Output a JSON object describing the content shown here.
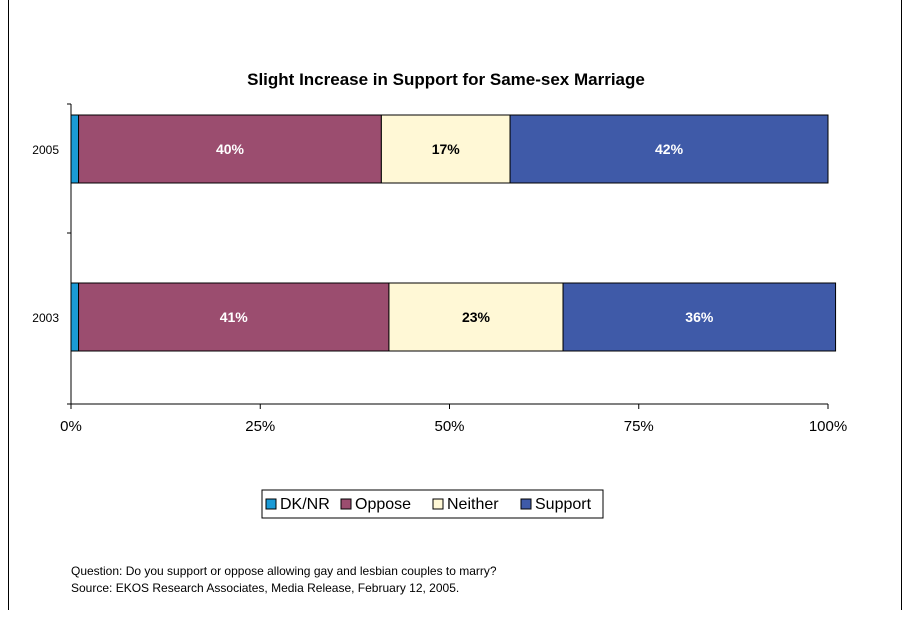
{
  "chart_data": {
    "type": "bar",
    "orientation": "horizontal",
    "stacked": true,
    "percent_stacked": true,
    "title": "Slight Increase in Support for Same-sex Marriage",
    "xlabel": "",
    "ylabel": "",
    "categories": [
      "2005",
      "2003"
    ],
    "series": [
      {
        "name": "DK/NR",
        "color": "#1a9ad6",
        "values": [
          1,
          1
        ],
        "labels": [
          "",
          ""
        ]
      },
      {
        "name": "Oppose",
        "color": "#9b4d6f",
        "values": [
          40,
          41
        ],
        "labels": [
          "40%",
          "41%"
        ]
      },
      {
        "name": "Neither",
        "color": "#fff8d6",
        "values": [
          17,
          23
        ],
        "labels": [
          "17%",
          "23%"
        ]
      },
      {
        "name": "Support",
        "color": "#3f5aa8",
        "values": [
          42,
          36
        ],
        "labels": [
          "42%",
          "36%"
        ]
      }
    ],
    "xlim": [
      0,
      100
    ],
    "xticks": [
      "0%",
      "25%",
      "50%",
      "75%",
      "100%"
    ],
    "grid": false,
    "legend_position": "bottom"
  },
  "footnotes": {
    "question": "Question: Do you support or oppose allowing gay and lesbian couples to marry?",
    "source": "Source: EKOS Research Associates, Media Release, February 12, 2005."
  }
}
